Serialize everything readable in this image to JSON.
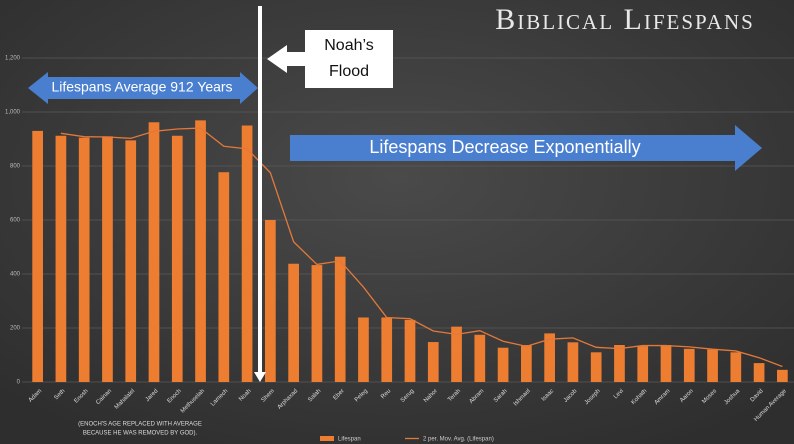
{
  "chart_data": {
    "type": "bar",
    "title": "Biblical Lifespans",
    "categories": [
      "Adam",
      "Seth",
      "Enosh",
      "Cainan",
      "Mahalalel",
      "Jared",
      "Enoch",
      "Methuselah",
      "Lamech",
      "Noah",
      "Shem",
      "Arphaxad",
      "Salah",
      "Eber",
      "Peleg",
      "Reu",
      "Serug",
      "Nahor",
      "Terah",
      "Abram",
      "Sarah",
      "Ishmael",
      "Isaac",
      "Jacob",
      "Joseph",
      "Levi",
      "Kohath",
      "Amram",
      "Aaron",
      "Moses",
      "Joshua",
      "David",
      "Human Average"
    ],
    "series": [
      {
        "name": "Lifespan",
        "color": "#ed7d31",
        "values": [
          930,
          912,
          905,
          910,
          895,
          962,
          912,
          969,
          777,
          950,
          600,
          438,
          433,
          464,
          239,
          239,
          230,
          148,
          205,
          175,
          127,
          137,
          180,
          147,
          110,
          137,
          133,
          137,
          123,
          120,
          110,
          70,
          45
        ]
      },
      {
        "name": "2 per. Mov. Avg. (Lifespan)",
        "color": "#e2783a",
        "values": [
          null,
          921,
          908.5,
          907.5,
          902.5,
          928.5,
          937,
          940.5,
          873,
          863.5,
          775,
          519,
          435.5,
          448.5,
          351.5,
          239,
          234.5,
          189,
          176.5,
          190,
          151,
          132,
          158.5,
          163.5,
          128.5,
          123.5,
          135,
          135,
          130,
          121.5,
          115,
          90,
          57.5
        ]
      }
    ],
    "ylim": [
      0,
      1200
    ],
    "yticks": [
      0,
      200,
      400,
      600,
      800,
      {
        "value": 1000,
        "label": "1,000"
      },
      {
        "value": 1200,
        "label": "1,200"
      }
    ],
    "grid": true,
    "annotations": {
      "average": "Lifespans Average 912 Years",
      "flood": [
        "Noah’s",
        "Flood"
      ],
      "decrease": "Lifespans Decrease Exponentially",
      "footnote": [
        "(ENOCH'S AGE REPLACED WITH AVERAGE",
        "BECAUSE HE WAS REMOVED BY GOD)."
      ]
    },
    "legend": "bottom"
  }
}
